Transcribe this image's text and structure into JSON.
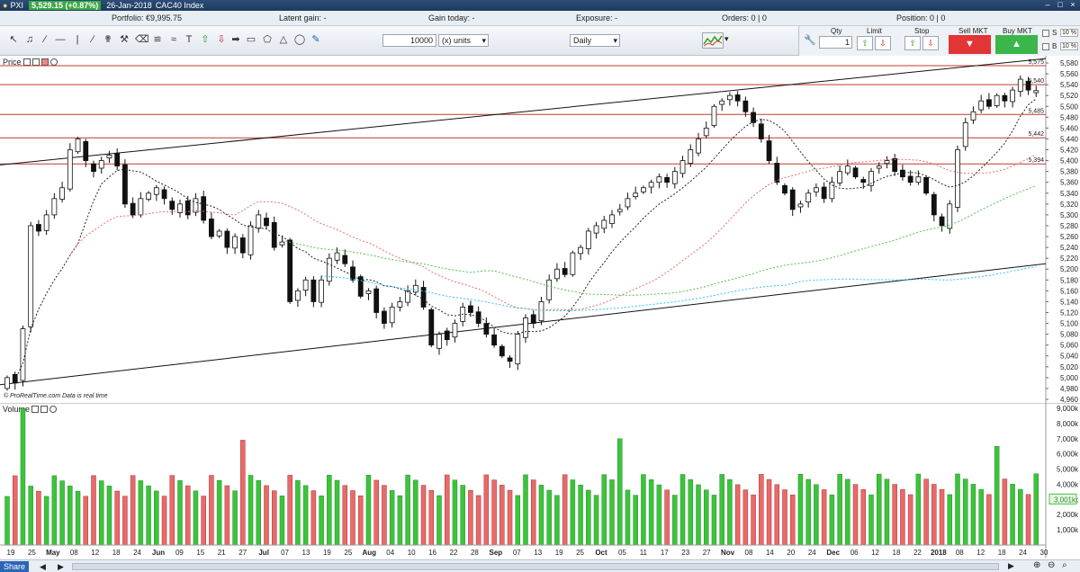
{
  "titlebar": {
    "app": "PXI",
    "price": "5,529.15 (+0.87%)",
    "date": "26-Jan-2018",
    "instrument": "CAC40 Index"
  },
  "infobar": {
    "portfolio": "Portfolio: €9,995.75",
    "latent_gain": "Latent gain:  -",
    "gain_today": "Gain today:  -",
    "exposure": "Exposure:  -",
    "orders": "Orders:  0  |  0",
    "position": "Position:  0  |  0"
  },
  "toolbar": {
    "quantity": "10000",
    "units": "(x) units",
    "period": "Daily"
  },
  "order_panel": {
    "qty_label": "Qty",
    "qty_value": "1",
    "limit_label": "Limit",
    "stop_label": "Stop",
    "sell_label": "Sell MKT",
    "buy_label": "Buy MKT",
    "s_label": "S",
    "b_label": "B",
    "pct1": "10 %",
    "pct2": "10 %"
  },
  "price_panel": {
    "label": "Price"
  },
  "volume_panel": {
    "label": "Volume"
  },
  "attribution": "© ProRealTime.com  Data is real time",
  "bottom": {
    "share": "Share"
  },
  "price_axis": [
    "5,580",
    "5,560",
    "5,540",
    "5,520",
    "5,500",
    "5,480",
    "5,460",
    "5,440",
    "5,420",
    "5,400",
    "5,380",
    "5,360",
    "5,340",
    "5,320",
    "5,300",
    "5,280",
    "5,260",
    "5,240",
    "5,220",
    "5,200",
    "5,180",
    "5,160",
    "5,140",
    "5,120",
    "5,100",
    "5,080",
    "5,060",
    "5,040",
    "5,020",
    "5,000",
    "4,980",
    "4,960"
  ],
  "level_labels": [
    "5,575",
    "5,540",
    "5,485",
    "5,442",
    "5,394"
  ],
  "volume_axis": [
    "9,000k",
    "8,000k",
    "7,000k",
    "6,000k",
    "5,000k",
    "4,000k",
    "3,000k",
    "2,000k",
    "1,000k"
  ],
  "volume_marker": "3,001k",
  "x_axis": [
    "19",
    "25",
    "May",
    "08",
    "12",
    "18",
    "24",
    "Jun",
    "09",
    "15",
    "21",
    "27",
    "Jul",
    "07",
    "13",
    "19",
    "25",
    "Aug",
    "04",
    "10",
    "16",
    "22",
    "28",
    "Sep",
    "07",
    "13",
    "19",
    "25",
    "Oct",
    "05",
    "11",
    "17",
    "23",
    "27",
    "Nov",
    "08",
    "14",
    "20",
    "24",
    "Dec",
    "06",
    "12",
    "18",
    "22",
    "2018",
    "08",
    "12",
    "18",
    "24",
    "30"
  ],
  "colors": {
    "up_volume": "#3cc43c",
    "down_volume": "#e86a6a",
    "resistance": "#c0392b",
    "ma_short": "#222222",
    "ma_mid": "#e07070",
    "ma_long": "#4ec24e",
    "ma_longest": "#2ec6e8"
  },
  "chart_data": {
    "type": "candlestick",
    "price_ylim": [
      4960,
      5580
    ],
    "volume_ylim": [
      0,
      9000
    ],
    "horizontal_levels": [
      5575,
      5540,
      5485,
      5442,
      5394
    ],
    "last_close": 5529.15,
    "approx_closes": [
      5000,
      4990,
      5090,
      5280,
      5270,
      5300,
      5330,
      5350,
      5420,
      5440,
      5400,
      5380,
      5400,
      5410,
      5390,
      5320,
      5300,
      5330,
      5340,
      5350,
      5330,
      5310,
      5320,
      5300,
      5330,
      5290,
      5260,
      5270,
      5240,
      5260,
      5230,
      5280,
      5300,
      5280,
      5240,
      5250,
      5140,
      5160,
      5180,
      5140,
      5180,
      5220,
      5230,
      5210,
      5180,
      5150,
      5160,
      5120,
      5100,
      5130,
      5140,
      5160,
      5170,
      5130,
      5060,
      5080,
      5070,
      5100,
      5130,
      5120,
      5100,
      5080,
      5060,
      5040,
      5030,
      5080,
      5110,
      5100,
      5140,
      5180,
      5200,
      5190,
      5230,
      5240,
      5270,
      5280,
      5290,
      5300,
      5310,
      5330,
      5340,
      5350,
      5360,
      5370,
      5360,
      5380,
      5400,
      5420,
      5440,
      5460,
      5500,
      5510,
      5520,
      5510,
      5490,
      5470,
      5440,
      5400,
      5360,
      5340,
      5310,
      5320,
      5340,
      5350,
      5330,
      5360,
      5380,
      5390,
      5370,
      5360,
      5380,
      5390,
      5400,
      5380,
      5370,
      5360,
      5370,
      5340,
      5300,
      5280,
      5320,
      5420,
      5470,
      5490,
      5510,
      5500,
      5520,
      5510,
      5530,
      5550,
      5530,
      5529
    ]
  }
}
